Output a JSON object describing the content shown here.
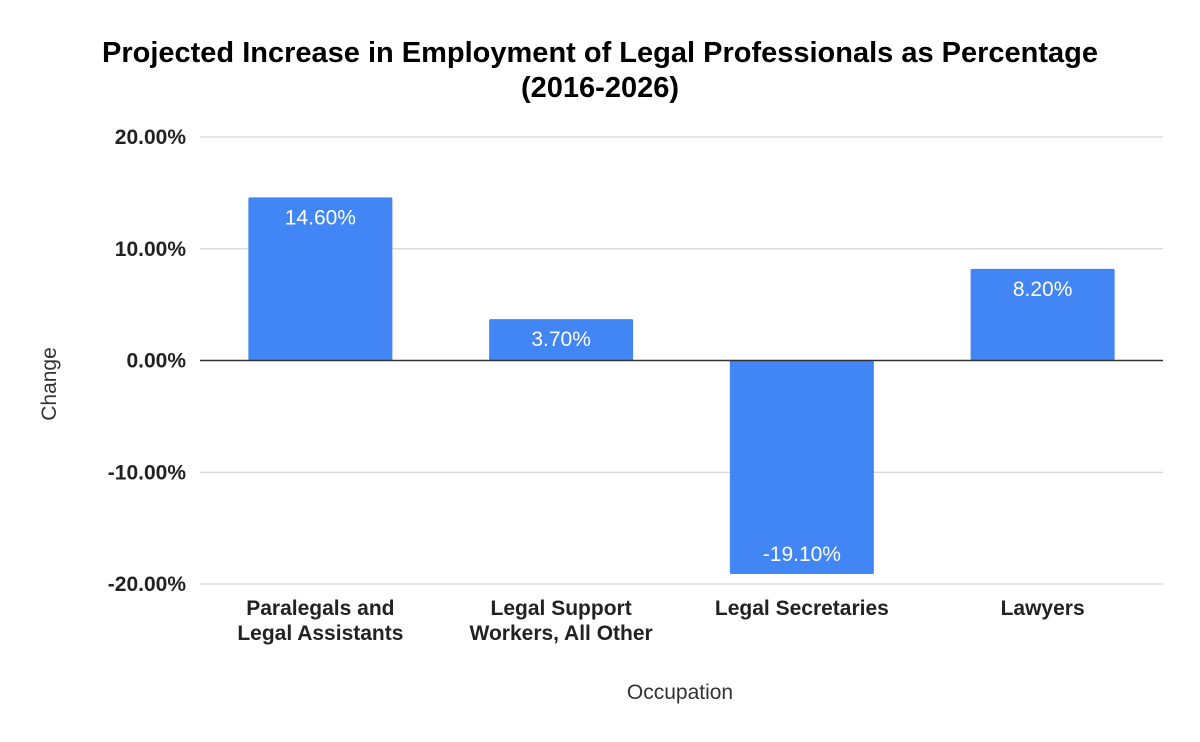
{
  "chart_data": {
    "type": "bar",
    "title_lines": [
      "Projected Increase in Employment of Legal Professionals as Percentage",
      "(2016-2026)"
    ],
    "xlabel": "Occupation",
    "ylabel": "Change",
    "categories": [
      [
        "Paralegals and",
        "Legal Assistants"
      ],
      [
        "Legal Support",
        "Workers, All Other"
      ],
      [
        "Legal Secretaries"
      ],
      [
        "Lawyers"
      ]
    ],
    "values": [
      14.6,
      3.7,
      -19.1,
      8.2
    ],
    "value_labels": [
      "14.60%",
      "3.70%",
      "-19.10%",
      "8.20%"
    ],
    "ylim": [
      -20,
      20
    ],
    "yticks": [
      20,
      10,
      0,
      -10,
      -20
    ],
    "ytick_labels": [
      "20.00%",
      "10.00%",
      "0.00%",
      "-10.00%",
      "-20.00%"
    ],
    "grid": true,
    "bar_color": "#4285f4",
    "gridline_color": "#cccccc",
    "zero_line_color": "#333333"
  }
}
